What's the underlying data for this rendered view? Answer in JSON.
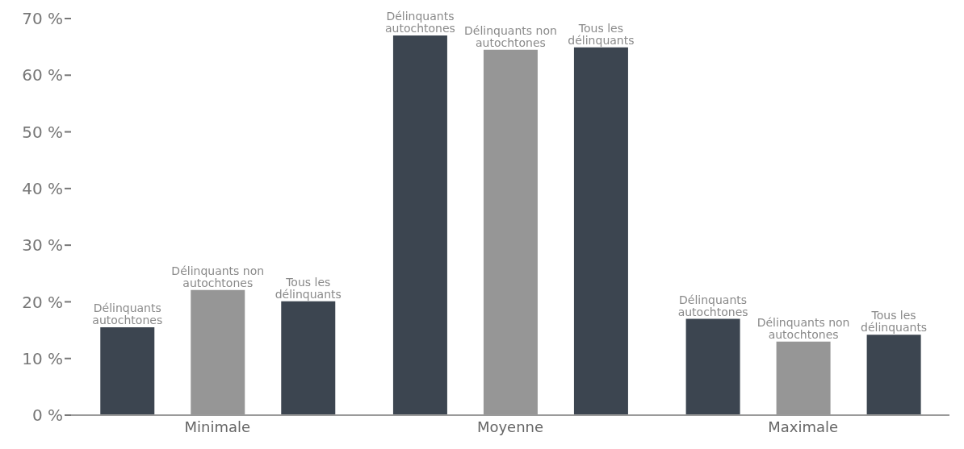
{
  "chart_data": {
    "type": "bar",
    "categories": [
      "Minimale",
      "Moyenne",
      "Maximale"
    ],
    "series": [
      {
        "name": "Délinquants autochtones",
        "color": "#3c4550",
        "values": [
          15.5,
          67.0,
          17.0
        ]
      },
      {
        "name": "Délinquants non autochtones",
        "color": "#969696",
        "values": [
          22.1,
          64.5,
          13.0
        ]
      },
      {
        "name": "Tous les délinquants",
        "color": "#3c4550",
        "values": [
          20.1,
          64.9,
          14.2
        ]
      }
    ],
    "ylim": [
      0,
      70
    ],
    "yticks": [
      {
        "value": 0,
        "label": "0 %"
      },
      {
        "value": 10,
        "label": "10 %"
      },
      {
        "value": 20,
        "label": "20 %"
      },
      {
        "value": 30,
        "label": "30 %"
      },
      {
        "value": 40,
        "label": "40 %"
      },
      {
        "value": 50,
        "label": "50 %"
      },
      {
        "value": 60,
        "label": "60 %"
      },
      {
        "value": 70,
        "label": "70 %"
      }
    ],
    "grid": false,
    "legend": false
  }
}
